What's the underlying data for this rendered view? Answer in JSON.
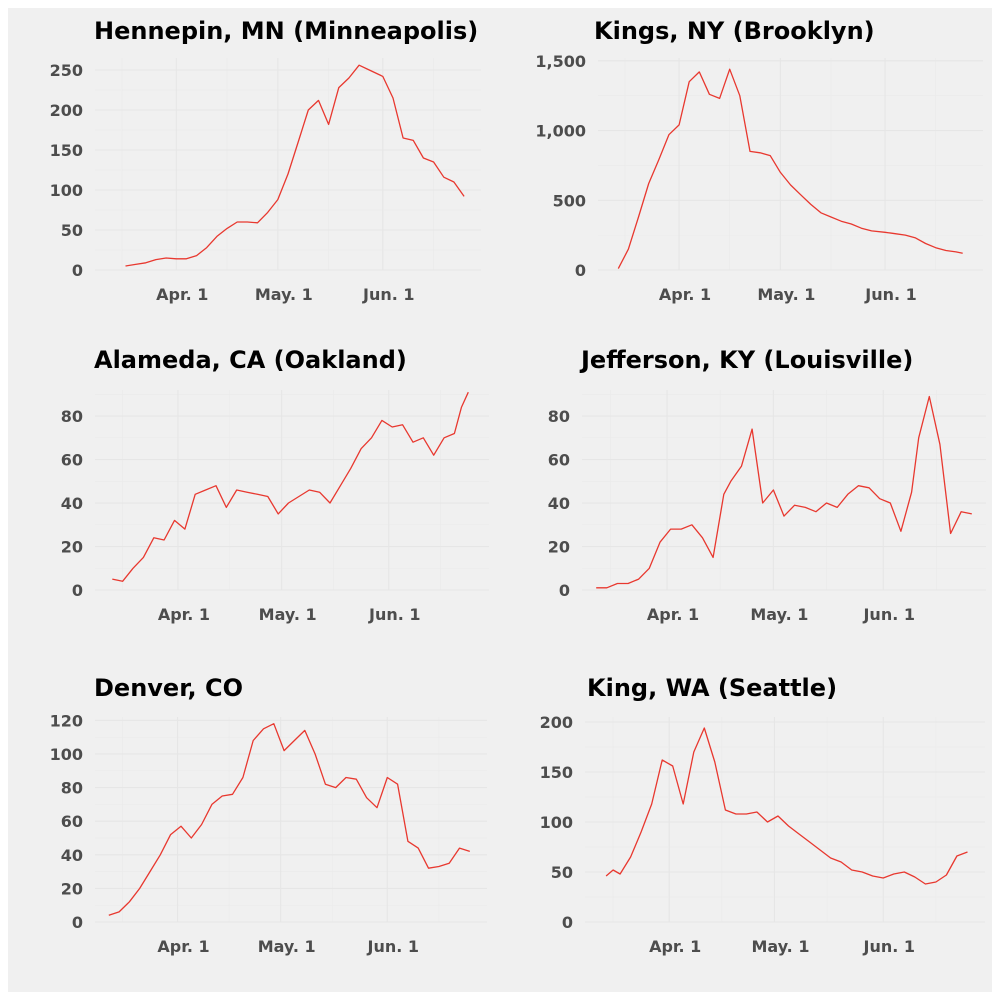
{
  "colors": {
    "line": "#e8382f",
    "panel": "#f0f0f0",
    "text": "#000000",
    "tick": "#4d4d4d"
  },
  "chart_data": [
    {
      "type": "line",
      "title": "Hennepin, MN (Minneapolis)",
      "x_ticks": [
        "Apr. 1",
        "May. 1",
        "Jun. 1"
      ],
      "y_ticks": [
        "0",
        "50",
        "100",
        "150",
        "200",
        "250"
      ],
      "y_tick_values": [
        0,
        50,
        100,
        150,
        200,
        250
      ],
      "ylim": [
        0,
        265
      ],
      "series": [
        {
          "x": [
            "2020-03-17",
            "2020-03-20",
            "2020-03-23",
            "2020-03-26",
            "2020-03-29",
            "2020-04-01",
            "2020-04-04",
            "2020-04-07",
            "2020-04-10",
            "2020-04-13",
            "2020-04-16",
            "2020-04-19",
            "2020-04-22",
            "2020-04-25",
            "2020-04-28",
            "2020-05-01",
            "2020-05-04",
            "2020-05-07",
            "2020-05-10",
            "2020-05-13",
            "2020-05-16",
            "2020-05-19",
            "2020-05-22",
            "2020-05-25",
            "2020-05-28",
            "2020-06-01",
            "2020-06-04",
            "2020-06-07",
            "2020-06-10",
            "2020-06-13",
            "2020-06-16",
            "2020-06-19",
            "2020-06-22",
            "2020-06-25"
          ],
          "values": [
            5,
            7,
            9,
            13,
            15,
            14,
            14,
            18,
            28,
            42,
            52,
            60,
            60,
            59,
            72,
            88,
            120,
            160,
            200,
            212,
            182,
            228,
            240,
            256,
            250,
            242,
            215,
            165,
            162,
            140,
            135,
            116,
            110,
            92
          ]
        }
      ]
    },
    {
      "type": "line",
      "title": "Kings, NY (Brooklyn)",
      "x_ticks": [
        "Apr. 1",
        "May. 1",
        "Jun. 1"
      ],
      "y_ticks": [
        "0",
        "500",
        "1,000",
        "1,500"
      ],
      "y_tick_values": [
        0,
        500,
        1000,
        1500
      ],
      "ylim": [
        0,
        1520
      ],
      "series": [
        {
          "x": [
            "2020-03-14",
            "2020-03-17",
            "2020-03-20",
            "2020-03-23",
            "2020-03-26",
            "2020-03-29",
            "2020-04-01",
            "2020-04-04",
            "2020-04-07",
            "2020-04-10",
            "2020-04-13",
            "2020-04-16",
            "2020-04-19",
            "2020-04-22",
            "2020-04-25",
            "2020-04-28",
            "2020-05-01",
            "2020-05-04",
            "2020-05-07",
            "2020-05-10",
            "2020-05-13",
            "2020-05-16",
            "2020-05-19",
            "2020-05-22",
            "2020-05-25",
            "2020-05-28",
            "2020-06-01",
            "2020-06-04",
            "2020-06-07",
            "2020-06-10",
            "2020-06-13",
            "2020-06-16",
            "2020-06-19",
            "2020-06-22",
            "2020-06-24"
          ],
          "values": [
            10,
            150,
            380,
            620,
            790,
            970,
            1040,
            1350,
            1420,
            1260,
            1230,
            1440,
            1250,
            850,
            840,
            820,
            700,
            610,
            540,
            470,
            410,
            380,
            350,
            330,
            300,
            280,
            270,
            260,
            250,
            230,
            190,
            160,
            140,
            130,
            120
          ]
        }
      ]
    },
    {
      "type": "line",
      "title": "Alameda, CA (Oakland)",
      "x_ticks": [
        "Apr. 1",
        "May. 1",
        "Jun. 1"
      ],
      "y_ticks": [
        "0",
        "20",
        "40",
        "60",
        "80"
      ],
      "y_tick_values": [
        0,
        20,
        40,
        60,
        80
      ],
      "ylim": [
        0,
        92
      ],
      "series": [
        {
          "x": [
            "2020-03-13",
            "2020-03-16",
            "2020-03-19",
            "2020-03-22",
            "2020-03-25",
            "2020-03-28",
            "2020-03-31",
            "2020-04-03",
            "2020-04-06",
            "2020-04-09",
            "2020-04-12",
            "2020-04-15",
            "2020-04-18",
            "2020-04-21",
            "2020-04-24",
            "2020-04-27",
            "2020-04-30",
            "2020-05-03",
            "2020-05-06",
            "2020-05-09",
            "2020-05-12",
            "2020-05-15",
            "2020-05-18",
            "2020-05-21",
            "2020-05-24",
            "2020-05-27",
            "2020-05-30",
            "2020-06-02",
            "2020-06-05",
            "2020-06-08",
            "2020-06-11",
            "2020-06-14",
            "2020-06-17",
            "2020-06-20",
            "2020-06-22",
            "2020-06-24"
          ],
          "values": [
            5,
            4,
            10,
            15,
            24,
            23,
            32,
            28,
            44,
            46,
            48,
            38,
            46,
            45,
            44,
            43,
            35,
            40,
            43,
            46,
            45,
            40,
            48,
            56,
            65,
            70,
            78,
            75,
            76,
            68,
            70,
            62,
            70,
            72,
            84,
            91
          ]
        }
      ]
    },
    {
      "type": "line",
      "title": "Jefferson, KY (Louisville)",
      "x_ticks": [
        "Apr. 1",
        "May. 1",
        "Jun. 1"
      ],
      "y_ticks": [
        "0",
        "20",
        "40",
        "60",
        "80"
      ],
      "y_tick_values": [
        0,
        20,
        40,
        60,
        80
      ],
      "ylim": [
        0,
        92
      ],
      "series": [
        {
          "x": [
            "2020-03-12",
            "2020-03-15",
            "2020-03-18",
            "2020-03-21",
            "2020-03-24",
            "2020-03-27",
            "2020-03-30",
            "2020-04-02",
            "2020-04-05",
            "2020-04-08",
            "2020-04-11",
            "2020-04-14",
            "2020-04-17",
            "2020-04-19",
            "2020-04-22",
            "2020-04-25",
            "2020-04-28",
            "2020-05-01",
            "2020-05-04",
            "2020-05-07",
            "2020-05-10",
            "2020-05-13",
            "2020-05-16",
            "2020-05-19",
            "2020-05-22",
            "2020-05-25",
            "2020-05-28",
            "2020-05-31",
            "2020-06-03",
            "2020-06-06",
            "2020-06-09",
            "2020-06-11",
            "2020-06-14",
            "2020-06-17",
            "2020-06-20",
            "2020-06-23",
            "2020-06-26"
          ],
          "values": [
            1,
            1,
            3,
            3,
            5,
            10,
            22,
            28,
            28,
            30,
            24,
            15,
            44,
            50,
            57,
            74,
            40,
            46,
            34,
            39,
            38,
            36,
            40,
            38,
            44,
            48,
            47,
            42,
            40,
            27,
            45,
            70,
            89,
            67,
            26,
            36,
            35
          ]
        }
      ]
    },
    {
      "type": "line",
      "title": "Denver, CO",
      "x_ticks": [
        "Apr. 1",
        "May. 1",
        "Jun. 1"
      ],
      "y_ticks": [
        "0",
        "20",
        "40",
        "60",
        "80",
        "100",
        "120"
      ],
      "y_tick_values": [
        0,
        20,
        40,
        60,
        80,
        100,
        120
      ],
      "ylim": [
        0,
        122
      ],
      "series": [
        {
          "x": [
            "2020-03-12",
            "2020-03-15",
            "2020-03-18",
            "2020-03-21",
            "2020-03-24",
            "2020-03-27",
            "2020-03-30",
            "2020-04-02",
            "2020-04-05",
            "2020-04-08",
            "2020-04-11",
            "2020-04-14",
            "2020-04-17",
            "2020-04-20",
            "2020-04-23",
            "2020-04-26",
            "2020-04-29",
            "2020-05-02",
            "2020-05-05",
            "2020-05-08",
            "2020-05-11",
            "2020-05-14",
            "2020-05-17",
            "2020-05-20",
            "2020-05-23",
            "2020-05-26",
            "2020-05-29",
            "2020-06-01",
            "2020-06-04",
            "2020-06-07",
            "2020-06-10",
            "2020-06-13",
            "2020-06-16",
            "2020-06-19",
            "2020-06-22",
            "2020-06-25"
          ],
          "values": [
            4,
            6,
            12,
            20,
            30,
            40,
            52,
            57,
            50,
            58,
            70,
            75,
            76,
            86,
            108,
            115,
            118,
            102,
            108,
            114,
            100,
            82,
            80,
            86,
            85,
            74,
            68,
            86,
            82,
            48,
            44,
            32,
            33,
            35,
            44,
            42
          ]
        }
      ]
    },
    {
      "type": "line",
      "title": "King, WA (Seattle)",
      "x_ticks": [
        "Apr. 1",
        "May. 1",
        "Jun. 1"
      ],
      "y_ticks": [
        "0",
        "50",
        "100",
        "150",
        "200"
      ],
      "y_tick_values": [
        0,
        50,
        100,
        150,
        200
      ],
      "ylim": [
        0,
        205
      ],
      "series": [
        {
          "x": [
            "2020-03-14",
            "2020-03-16",
            "2020-03-18",
            "2020-03-21",
            "2020-03-24",
            "2020-03-27",
            "2020-03-30",
            "2020-04-02",
            "2020-04-05",
            "2020-04-08",
            "2020-04-11",
            "2020-04-14",
            "2020-04-17",
            "2020-04-20",
            "2020-04-23",
            "2020-04-26",
            "2020-04-29",
            "2020-05-02",
            "2020-05-05",
            "2020-05-08",
            "2020-05-11",
            "2020-05-14",
            "2020-05-17",
            "2020-05-20",
            "2020-05-23",
            "2020-05-26",
            "2020-05-29",
            "2020-06-01",
            "2020-06-04",
            "2020-06-07",
            "2020-06-10",
            "2020-06-13",
            "2020-06-16",
            "2020-06-19",
            "2020-06-22",
            "2020-06-25"
          ],
          "values": [
            46,
            52,
            48,
            65,
            90,
            118,
            162,
            156,
            118,
            170,
            194,
            160,
            112,
            108,
            108,
            110,
            100,
            106,
            96,
            88,
            80,
            72,
            64,
            60,
            52,
            50,
            46,
            44,
            48,
            50,
            45,
            38,
            40,
            47,
            66,
            70
          ]
        }
      ]
    }
  ]
}
